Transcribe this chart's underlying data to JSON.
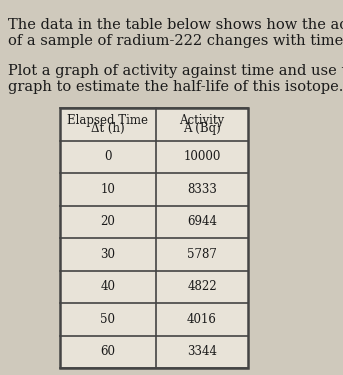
{
  "title_line1": "The data in the table below shows how the activity",
  "title_line2": "of a sample of radium-222 changes with time.",
  "subtitle_line1": "Plot a graph of activity against time and use the",
  "subtitle_line2": "graph to estimate the half-life of this isotope.",
  "col1_header_line1": "Elapsed Time",
  "col1_header_line2": "Δt (h)",
  "col2_header_line1": "Activity",
  "col2_header_line2": "A (Bq)",
  "time": [
    0,
    10,
    20,
    30,
    40,
    50,
    60
  ],
  "activity": [
    10000,
    8333,
    6944,
    5787,
    4822,
    4016,
    3344
  ],
  "bg_color": "#cfc9bc",
  "text_color": "#1a1a1a",
  "border_color": "#444444",
  "table_face": "#e8e3d8",
  "font_size_text": 10.5,
  "font_size_table": 8.5
}
